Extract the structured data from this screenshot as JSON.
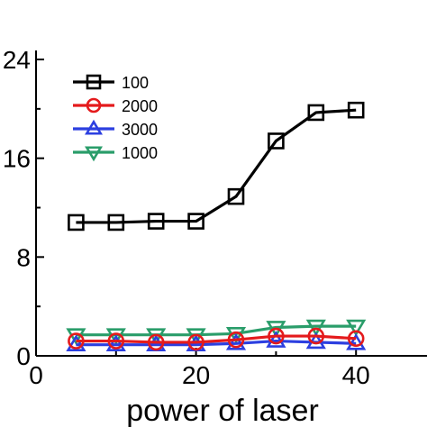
{
  "chart_data": {
    "type": "line",
    "title": "",
    "xlabel": "power of laser",
    "ylabel": "",
    "xlim": [
      0,
      50
    ],
    "ylim": [
      0,
      24
    ],
    "xticks": [
      0,
      20,
      40
    ],
    "yticks": [
      0,
      8,
      16,
      24
    ],
    "grid": false,
    "legend_position": "top-left",
    "x": [
      5,
      10,
      15,
      20,
      25,
      30,
      35,
      40
    ],
    "series": [
      {
        "name": "100",
        "color": "#000000",
        "marker": "square",
        "values": [
          10.8,
          10.8,
          10.9,
          10.9,
          12.9,
          17.4,
          19.7,
          19.9
        ]
      },
      {
        "name": "2000",
        "color": "#e41a1c",
        "marker": "circle",
        "values": [
          1.2,
          1.2,
          1.1,
          1.1,
          1.3,
          1.6,
          1.6,
          1.4
        ]
      },
      {
        "name": "3000",
        "color": "#2c3fe0",
        "marker": "triangle-up",
        "values": [
          0.9,
          0.9,
          0.9,
          0.9,
          1.0,
          1.2,
          1.1,
          1.0
        ]
      },
      {
        "name": "1000",
        "color": "#2a9d6a",
        "marker": "triangle-down",
        "values": [
          1.7,
          1.7,
          1.7,
          1.7,
          1.8,
          2.3,
          2.4,
          2.4
        ]
      }
    ]
  }
}
